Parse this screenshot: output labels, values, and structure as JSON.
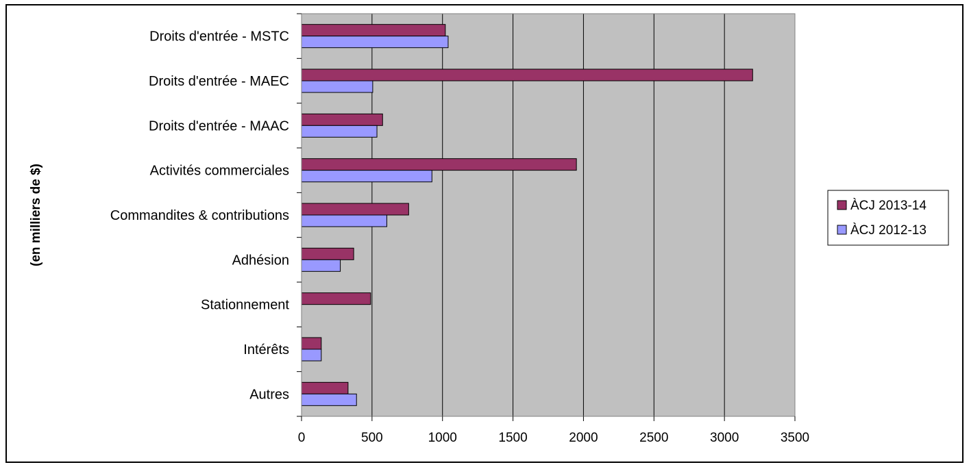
{
  "chart_data": {
    "type": "bar",
    "orientation": "horizontal",
    "title": "",
    "xlabel": "",
    "ylabel": "(en milliers de $)",
    "xlim": [
      0,
      3500
    ],
    "xticks": [
      0,
      500,
      1000,
      1500,
      2000,
      2500,
      3000,
      3500
    ],
    "grid": true,
    "legend_position": "right",
    "plot_background": "#c0c0c0",
    "categories": [
      "Droits d'entrée - MSTC",
      "Droits d'entrée - MAEC",
      "Droits d'entrée - MAAC",
      "Activités commerciales",
      "Commandites & contributions",
      "Adhésion",
      "Stationnement",
      "Intérêts",
      "Autres"
    ],
    "series": [
      {
        "name": "ÀCJ 2013-14",
        "color": "#993366",
        "values": [
          1020,
          3200,
          575,
          1950,
          760,
          370,
          490,
          140,
          330
        ]
      },
      {
        "name": "ÀCJ 2012-13",
        "color": "#9999ff",
        "values": [
          1040,
          505,
          535,
          925,
          605,
          275,
          0,
          140,
          390
        ]
      }
    ]
  }
}
